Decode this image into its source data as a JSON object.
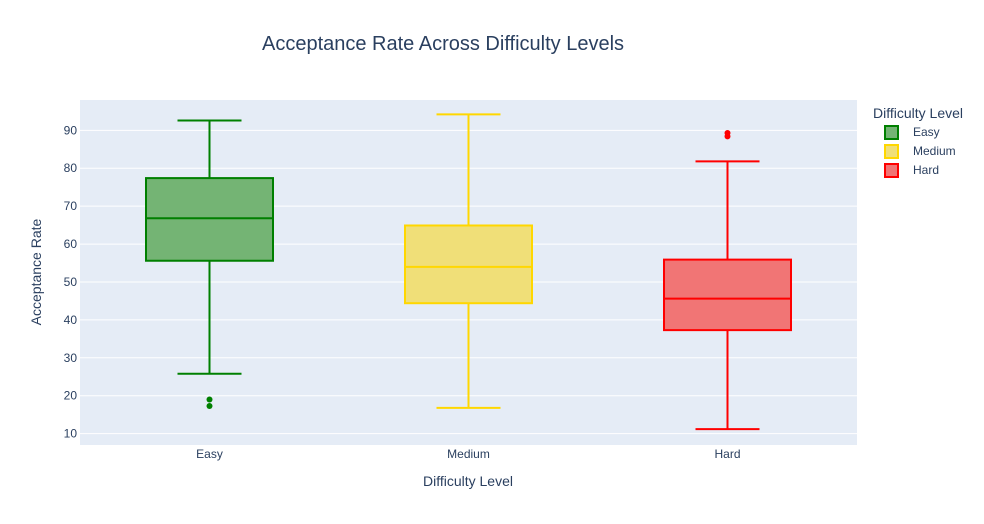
{
  "chart_data": {
    "type": "box",
    "title": "Acceptance Rate Across Difficulty Levels",
    "xlabel": "Difficulty Level",
    "ylabel": "Acceptance Rate",
    "ylim": [
      7,
      98
    ],
    "yticks": [
      10,
      20,
      30,
      40,
      50,
      60,
      70,
      80,
      90
    ],
    "categories": [
      "Easy",
      "Medium",
      "Hard"
    ],
    "grid": true,
    "legend": {
      "title": "Difficulty Level",
      "placement": "top-right"
    },
    "series": [
      {
        "name": "Easy",
        "color": "#008000",
        "fill": "#74b474",
        "lowerfence": 25.8,
        "q1": 55.6,
        "median": 66.8,
        "q3": 77.4,
        "upperfence": 92.6,
        "outliers": [
          17.3,
          19.0
        ]
      },
      {
        "name": "Medium",
        "color": "#FFD700",
        "fill": "#f0df78",
        "lowerfence": 16.8,
        "q1": 44.4,
        "median": 54.0,
        "q3": 64.9,
        "upperfence": 94.2,
        "outliers": []
      },
      {
        "name": "Hard",
        "color": "#FF0000",
        "fill": "#f17575",
        "lowerfence": 11.2,
        "q1": 37.3,
        "median": 45.6,
        "q3": 55.9,
        "upperfence": 81.8,
        "outliers": [
          88.4,
          89.3
        ]
      }
    ]
  }
}
